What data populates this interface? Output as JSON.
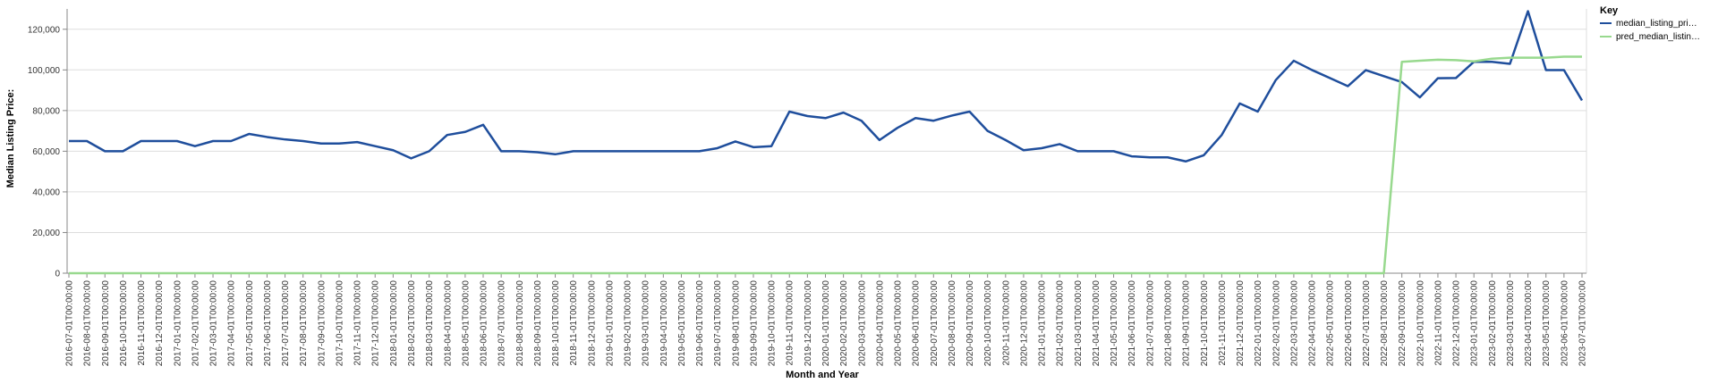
{
  "chart_data": {
    "type": "line",
    "xlabel": "Month and Year",
    "ylabel": "Median Listing Price:",
    "ylim": [
      0,
      130000
    ],
    "yticks": [
      0,
      20000,
      40000,
      60000,
      80000,
      100000,
      120000
    ],
    "ytick_labels": [
      "0",
      "20,000",
      "40,000",
      "60,000",
      "80,000",
      "100,000",
      "120,000"
    ],
    "grid": true,
    "legend": {
      "title": "Key",
      "position": "top-right"
    },
    "x": [
      "2016-07-01T00:00:00",
      "2016-08-01T00:00:00",
      "2016-09-01T00:00:00",
      "2016-10-01T00:00:00",
      "2016-11-01T00:00:00",
      "2016-12-01T00:00:00",
      "2017-01-01T00:00:00",
      "2017-02-01T00:00:00",
      "2017-03-01T00:00:00",
      "2017-04-01T00:00:00",
      "2017-05-01T00:00:00",
      "2017-06-01T00:00:00",
      "2017-07-01T00:00:00",
      "2017-08-01T00:00:00",
      "2017-09-01T00:00:00",
      "2017-10-01T00:00:00",
      "2017-11-01T00:00:00",
      "2017-12-01T00:00:00",
      "2018-01-01T00:00:00",
      "2018-02-01T00:00:00",
      "2018-03-01T00:00:00",
      "2018-04-01T00:00:00",
      "2018-05-01T00:00:00",
      "2018-06-01T00:00:00",
      "2018-07-01T00:00:00",
      "2018-08-01T00:00:00",
      "2018-09-01T00:00:00",
      "2018-10-01T00:00:00",
      "2018-11-01T00:00:00",
      "2018-12-01T00:00:00",
      "2019-01-01T00:00:00",
      "2019-02-01T00:00:00",
      "2019-03-01T00:00:00",
      "2019-04-01T00:00:00",
      "2019-05-01T00:00:00",
      "2019-06-01T00:00:00",
      "2019-07-01T00:00:00",
      "2019-08-01T00:00:00",
      "2019-09-01T00:00:00",
      "2019-10-01T00:00:00",
      "2019-11-01T00:00:00",
      "2019-12-01T00:00:00",
      "2020-01-01T00:00:00",
      "2020-02-01T00:00:00",
      "2020-03-01T00:00:00",
      "2020-04-01T00:00:00",
      "2020-05-01T00:00:00",
      "2020-06-01T00:00:00",
      "2020-07-01T00:00:00",
      "2020-08-01T00:00:00",
      "2020-09-01T00:00:00",
      "2020-10-01T00:00:00",
      "2020-11-01T00:00:00",
      "2020-12-01T00:00:00",
      "2021-01-01T00:00:00",
      "2021-02-01T00:00:00",
      "2021-03-01T00:00:00",
      "2021-04-01T00:00:00",
      "2021-05-01T00:00:00",
      "2021-06-01T00:00:00",
      "2021-07-01T00:00:00",
      "2021-08-01T00:00:00",
      "2021-09-01T00:00:00",
      "2021-10-01T00:00:00",
      "2021-11-01T00:00:00",
      "2021-12-01T00:00:00",
      "2022-01-01T00:00:00",
      "2022-02-01T00:00:00",
      "2022-03-01T00:00:00",
      "2022-04-01T00:00:00",
      "2022-05-01T00:00:00",
      "2022-06-01T00:00:00",
      "2022-07-01T00:00:00",
      "2022-08-01T00:00:00",
      "2022-09-01T00:00:00",
      "2022-10-01T00:00:00",
      "2022-11-01T00:00:00",
      "2022-12-01T00:00:00",
      "2023-01-01T00:00:00",
      "2023-02-01T00:00:00",
      "2023-03-01T00:00:00",
      "2023-04-01T00:00:00",
      "2023-05-01T00:00:00",
      "2023-06-01T00:00:00",
      "2023-07-01T00:00:00"
    ],
    "series": [
      {
        "name": "median_listing_pri…",
        "color": "#1f4e9c",
        "values": [
          65000,
          65000,
          60000,
          60000,
          65000,
          65000,
          65000,
          62500,
          65000,
          65000,
          68500,
          67000,
          65800,
          65000,
          63800,
          63800,
          64500,
          62500,
          60500,
          56500,
          60000,
          68000,
          69500,
          73000,
          60000,
          60000,
          59500,
          58500,
          60000,
          60000,
          60000,
          60000,
          60000,
          60000,
          60000,
          60000,
          61500,
          64800,
          62000,
          62500,
          79500,
          77300,
          76300,
          79000,
          75000,
          65500,
          71500,
          76300,
          75000,
          77500,
          79500,
          70000,
          65500,
          60500,
          61500,
          63500,
          60000,
          60000,
          60000,
          57500,
          57000,
          57000,
          55000,
          58000,
          68000,
          83500,
          79500,
          95000,
          104500,
          100000,
          96000,
          92000,
          99900,
          96900,
          94000,
          86500,
          95900,
          96000,
          104000,
          104000,
          103000,
          128900,
          99900,
          99900,
          85000
        ]
      },
      {
        "name": "pred_median_listin…",
        "color": "#98d98e",
        "values": [
          0,
          0,
          0,
          0,
          0,
          0,
          0,
          0,
          0,
          0,
          0,
          0,
          0,
          0,
          0,
          0,
          0,
          0,
          0,
          0,
          0,
          0,
          0,
          0,
          0,
          0,
          0,
          0,
          0,
          0,
          0,
          0,
          0,
          0,
          0,
          0,
          0,
          0,
          0,
          0,
          0,
          0,
          0,
          0,
          0,
          0,
          0,
          0,
          0,
          0,
          0,
          0,
          0,
          0,
          0,
          0,
          0,
          0,
          0,
          0,
          0,
          0,
          0,
          0,
          0,
          0,
          0,
          0,
          0,
          0,
          0,
          0,
          0,
          0,
          104000,
          104500,
          105000,
          104800,
          104200,
          105500,
          106000,
          106000,
          106000,
          106500,
          106500
        ]
      }
    ]
  }
}
